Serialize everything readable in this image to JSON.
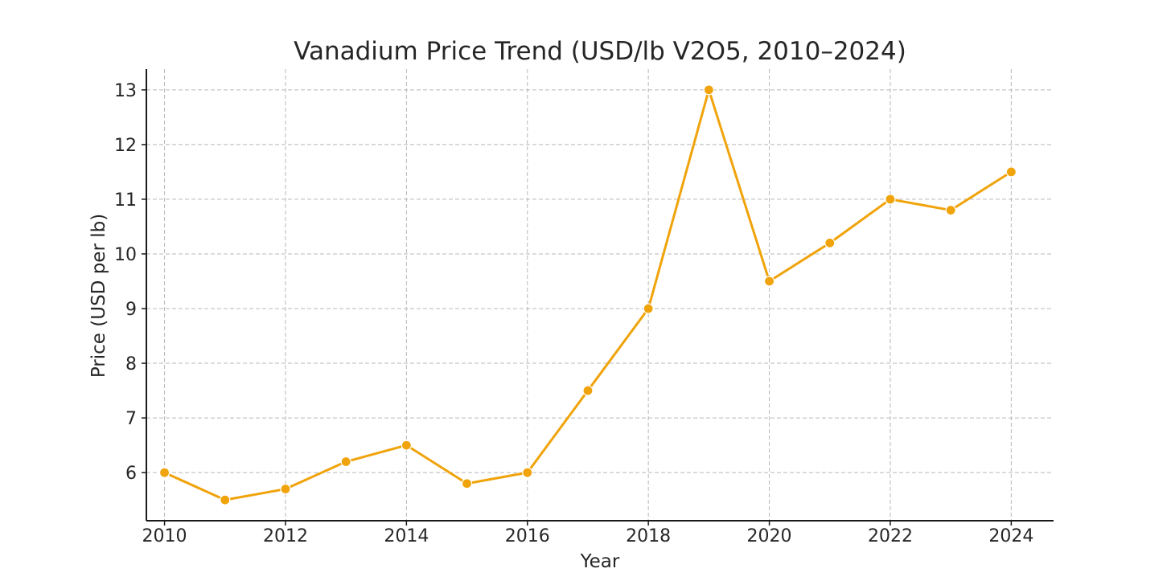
{
  "chart_data": {
    "type": "line",
    "title": "Vanadium Price Trend (USD/lb V2O5, 2010–2024)",
    "xlabel": "Year",
    "ylabel": "Price (USD per lb)",
    "x": [
      2010,
      2011,
      2012,
      2013,
      2014,
      2015,
      2016,
      2017,
      2018,
      2019,
      2020,
      2021,
      2022,
      2023,
      2024
    ],
    "series": [
      {
        "name": "",
        "values": [
          6.0,
          5.5,
          5.7,
          6.2,
          6.5,
          5.8,
          6.0,
          7.5,
          9.0,
          13.0,
          9.5,
          10.2,
          11.0,
          10.8,
          11.5
        ],
        "color": "#f0a30a",
        "marker": "circle"
      }
    ],
    "xlim": [
      2009.7,
      2024.7
    ],
    "ylim": [
      5.12,
      13.38
    ],
    "xticks": [
      "2010",
      "2012",
      "2014",
      "2016",
      "2018",
      "2020",
      "2022",
      "2024"
    ],
    "yticks": [
      "6",
      "7",
      "8",
      "9",
      "10",
      "11",
      "12",
      "13"
    ],
    "grid": true,
    "legend": "none"
  }
}
